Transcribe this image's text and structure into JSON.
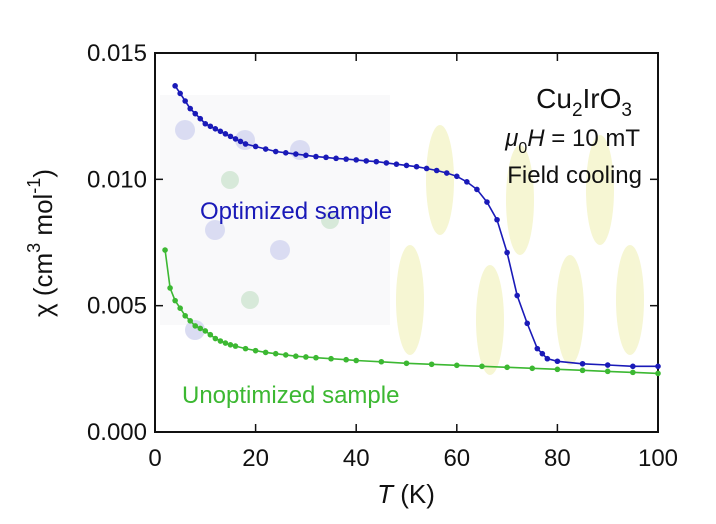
{
  "chart_data": {
    "type": "line",
    "title": "",
    "xlabel": {
      "symbol": "T",
      "unit": " (K)"
    },
    "ylabel": {
      "prefix": "χ (cm",
      "sup1": "3",
      "middle": " mol",
      "sup2": "-1",
      "suffix": ")"
    },
    "xlim": [
      0,
      100
    ],
    "ylim": [
      0,
      0.015
    ],
    "x_ticks": [
      0,
      20,
      40,
      60,
      80,
      100
    ],
    "x_tick_labels": [
      "0",
      "20",
      "40",
      "60",
      "80",
      "100"
    ],
    "y_ticks": [
      0,
      0.005,
      0.01,
      0.015
    ],
    "y_tick_labels": [
      "0.000",
      "0.005",
      "0.010",
      "0.015"
    ],
    "annotations": {
      "compound": {
        "base1": "Cu",
        "sub1": "2",
        "base2": "IrO",
        "sub2": "3"
      },
      "field": {
        "mu": "μ",
        "mu_sub": "0",
        "h": "H",
        "rest": " = 10 mT"
      },
      "mode": "Field cooling"
    },
    "series": [
      {
        "name": "Optimized sample",
        "color": "#1a1ab8",
        "x": [
          4,
          5,
          6,
          7,
          8,
          9,
          10,
          11,
          12,
          13,
          14,
          15,
          16,
          17,
          18,
          20,
          22,
          24,
          26,
          28,
          30,
          32,
          34,
          36,
          38,
          40,
          42,
          44,
          46,
          48,
          50,
          52,
          54,
          56,
          58,
          60,
          62,
          64,
          66,
          68,
          70,
          72,
          74,
          76,
          77,
          78,
          80,
          85,
          90,
          95,
          100
        ],
        "values": [
          0.0137,
          0.0134,
          0.0131,
          0.0128,
          0.0126,
          0.0124,
          0.0122,
          0.0121,
          0.012,
          0.0119,
          0.0118,
          0.0117,
          0.0116,
          0.0115,
          0.0114,
          0.0113,
          0.0112,
          0.0111,
          0.01105,
          0.011,
          0.01095,
          0.0109,
          0.01087,
          0.01083,
          0.0108,
          0.01077,
          0.01073,
          0.0107,
          0.01065,
          0.0106,
          0.01055,
          0.0105,
          0.01043,
          0.01035,
          0.01025,
          0.01012,
          0.0099,
          0.0096,
          0.0091,
          0.0084,
          0.0071,
          0.0054,
          0.0043,
          0.0033,
          0.0031,
          0.0029,
          0.0028,
          0.0027,
          0.00265,
          0.0026,
          0.0026
        ]
      },
      {
        "name": "Unoptimized sample",
        "color": "#3cb832",
        "x": [
          2,
          3,
          4,
          5,
          6,
          7,
          8,
          9,
          10,
          11,
          12,
          13,
          14,
          15,
          16,
          18,
          20,
          22,
          24,
          26,
          28,
          30,
          32,
          35,
          38,
          40,
          45,
          50,
          55,
          60,
          65,
          70,
          75,
          80,
          85,
          90,
          95,
          100
        ],
        "values": [
          0.0072,
          0.0057,
          0.0052,
          0.0049,
          0.0046,
          0.0044,
          0.0042,
          0.0041,
          0.004,
          0.00385,
          0.0037,
          0.0036,
          0.00352,
          0.00345,
          0.0034,
          0.0033,
          0.00322,
          0.00315,
          0.0031,
          0.00305,
          0.003,
          0.00297,
          0.00294,
          0.0029,
          0.00286,
          0.00283,
          0.00278,
          0.00272,
          0.00268,
          0.00264,
          0.0026,
          0.00256,
          0.00252,
          0.00248,
          0.00244,
          0.0024,
          0.00236,
          0.00232
        ]
      }
    ],
    "legend": "inline labels"
  }
}
